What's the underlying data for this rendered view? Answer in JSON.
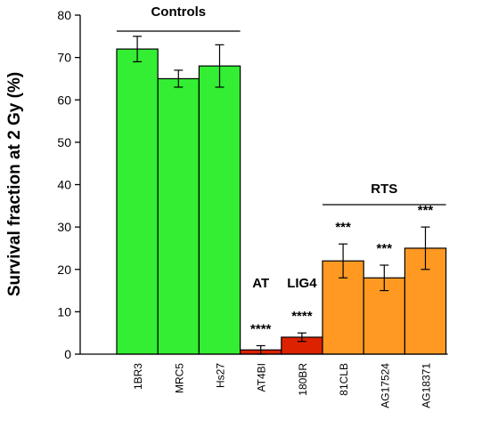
{
  "chart_data": {
    "type": "bar",
    "ylabel": "Survival fraction at 2 Gy (%)",
    "ylim": [
      0,
      80
    ],
    "yticks": [
      0,
      10,
      20,
      30,
      40,
      50,
      60,
      70,
      80
    ],
    "categories": [
      "1BR3",
      "MRC5",
      "Hs27",
      "AT4BI",
      "180BR",
      "81CLB",
      "AG17524",
      "AG18371"
    ],
    "values": [
      72,
      65,
      68,
      1,
      4,
      22,
      18,
      25
    ],
    "errors": [
      3,
      2,
      5,
      1,
      1,
      4,
      3,
      5
    ],
    "colors": [
      "#33ee33",
      "#33ee33",
      "#33ee33",
      "#dd2200",
      "#dd2200",
      "#ff9922",
      "#ff9922",
      "#ff9922"
    ],
    "significance": [
      "",
      "",
      "",
      "****",
      "****",
      "***",
      "***",
      "***"
    ],
    "groups": [
      {
        "label": "Controls",
        "from": 0,
        "to": 2,
        "bracket": true
      },
      {
        "label": "AT",
        "from": 3,
        "to": 3,
        "bracket": false
      },
      {
        "label": "LIG4",
        "from": 4,
        "to": 4,
        "bracket": false
      },
      {
        "label": "RTS",
        "from": 5,
        "to": 7,
        "bracket": true
      }
    ]
  }
}
